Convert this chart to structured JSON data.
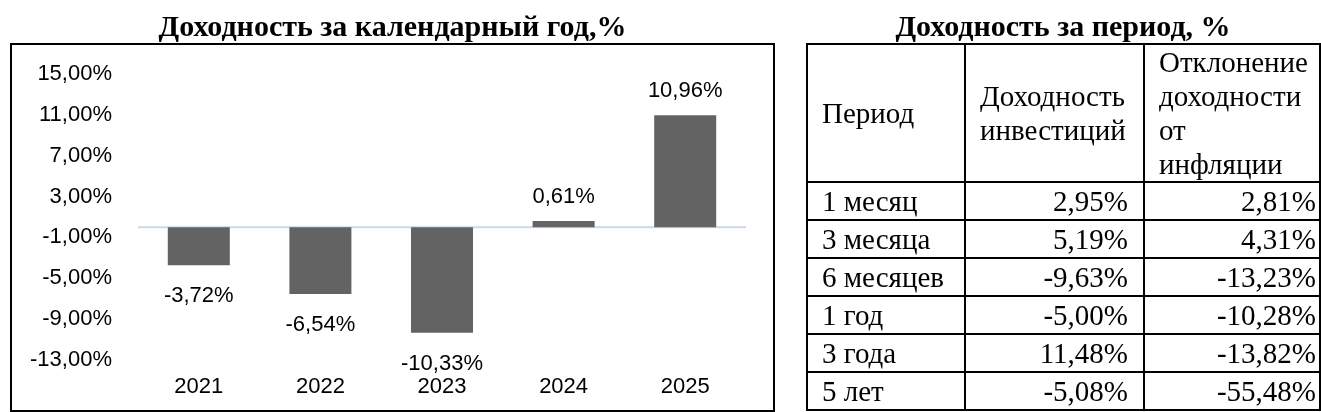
{
  "chart_data": [
    {
      "type": "bar",
      "title": "Доходность за календарный год,%",
      "categories": [
        "2021",
        "2022",
        "2023",
        "2024",
        "2025"
      ],
      "values": [
        -3.72,
        -6.54,
        -10.33,
        0.61,
        10.96
      ],
      "value_labels": [
        "-3,72%",
        "-6,54%",
        "-10,33%",
        "0,61%",
        "10,96%"
      ],
      "color": "#636363",
      "ylim": [
        -13,
        15
      ],
      "yticks": [
        {
          "value": -13,
          "label": "-13,00%"
        },
        {
          "value": -9,
          "label": "-9,00%"
        },
        {
          "value": -5,
          "label": "-5,00%"
        },
        {
          "value": -1,
          "label": "-1,00%"
        },
        {
          "value": 3,
          "label": "3,00%"
        },
        {
          "value": 7,
          "label": "7,00%"
        },
        {
          "value": 11,
          "label": "11,00%"
        },
        {
          "value": 15,
          "label": "15,00%"
        }
      ]
    },
    {
      "type": "other",
      "title": "Доходность за период, %",
      "xlabel": "Период",
      "categories": [
        "1 месяц",
        "3 месяца",
        "6 месяцев",
        "1 год",
        "3 года",
        "5 лет"
      ],
      "series": [
        {
          "name": "Доходность инвестиций",
          "values": [
            2.95,
            5.19,
            -9.63,
            -5.0,
            11.48,
            -5.08
          ],
          "value_labels": [
            "2,95%",
            "5,19%",
            "-9,63%",
            "-5,00%",
            "11,48%",
            "-5,08%"
          ]
        },
        {
          "name": "Отклонение доходности от инфляции",
          "values": [
            2.81,
            4.31,
            -13.23,
            -10.28,
            -13.82,
            -55.48
          ],
          "value_labels": [
            "2,81%",
            "4,31%",
            "-13,23%",
            "-10,28%",
            "-13,82%",
            "-55,48%"
          ]
        }
      ]
    }
  ]
}
